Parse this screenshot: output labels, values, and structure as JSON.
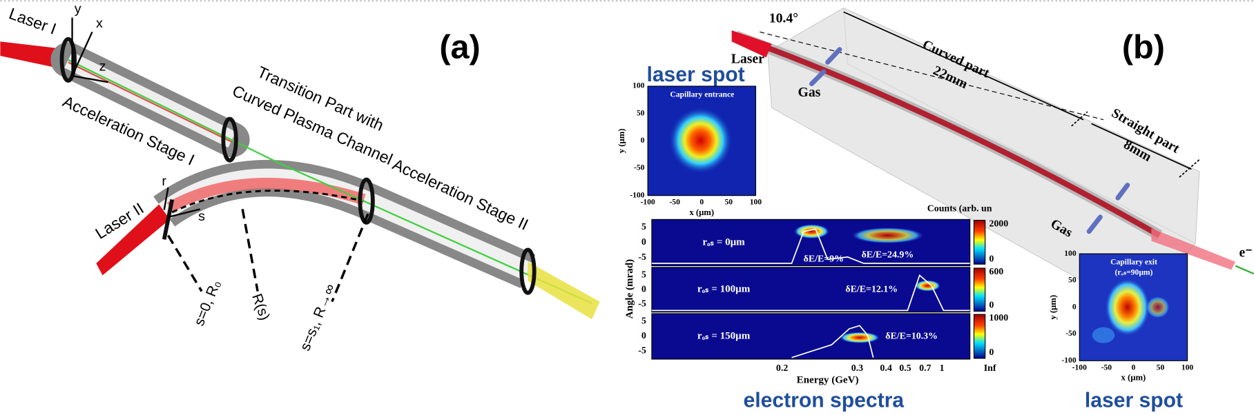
{
  "panel_a": {
    "label": "(a)",
    "laser_1": "Laser I",
    "laser_2": "Laser II",
    "axis_y": "y",
    "axis_x": "x",
    "axis_z": "z",
    "axis_r": "r",
    "axis_s": "s",
    "stage_1": "Acceleration Stage I",
    "transition_1": "Transition Part with",
    "transition_2": "Curved Plasma Channel",
    "stage_2": "Acceleration Stage II",
    "marker_start": "s=0, R₀",
    "marker_radius": "R(s)",
    "marker_end": "s=s₁, R→∞"
  },
  "panel_b": {
    "label": "(b)",
    "angle": "10.4°",
    "laser": "Laser",
    "curved_part": "Curved part",
    "curved_length": "22mm",
    "straight_part": "Straight part",
    "straight_length": "8mm",
    "gas_1": "Gas",
    "gas_2": "Gas",
    "electron": "e⁻"
  },
  "entrance_spot": {
    "title": "laser spot",
    "caption": "Capillary entrance",
    "y_label": "y (μm)",
    "x_label": "x (μm)",
    "yticks": [
      100,
      50,
      0,
      -50,
      -100
    ],
    "xticks": [
      -100,
      -50,
      0,
      50,
      100
    ]
  },
  "spectra": {
    "title": "electron spectra",
    "counts_label": "Counts (arb. un",
    "y_label": "Angle (mrad)",
    "x_label": "Energy (GeV)",
    "xticks": [
      0.2,
      0.3,
      0.4,
      0.5,
      0.7,
      1,
      "Inf"
    ],
    "rows": [
      {
        "label": "rₒₛ = 0μm",
        "spreads": [
          "δE/E=9%",
          "δE/E=24.9%"
        ],
        "yticks": [
          5,
          0,
          -5
        ],
        "colorbar_ticks": [
          2000,
          0
        ]
      },
      {
        "label": "rₒₛ = 100μm",
        "spreads": [
          "δE/E=12.1%"
        ],
        "yticks": [
          5,
          0,
          -5
        ],
        "colorbar_ticks": [
          600,
          0
        ]
      },
      {
        "label": "rₒₛ = 150μm",
        "spreads": [
          "δE/E=10.3%"
        ],
        "yticks": [
          5,
          0,
          -5
        ],
        "colorbar_ticks": [
          1000,
          0
        ]
      }
    ]
  },
  "exit_spot": {
    "title": "laser spot",
    "caption": "Capillary exit",
    "radius": "(rₒₛ=90μm)",
    "y_label": "y (μm)",
    "x_label": "x (μm)",
    "yticks": [
      100,
      50,
      0,
      -50,
      -100
    ],
    "xticks": [
      -100,
      -50,
      0,
      50,
      100
    ]
  }
}
